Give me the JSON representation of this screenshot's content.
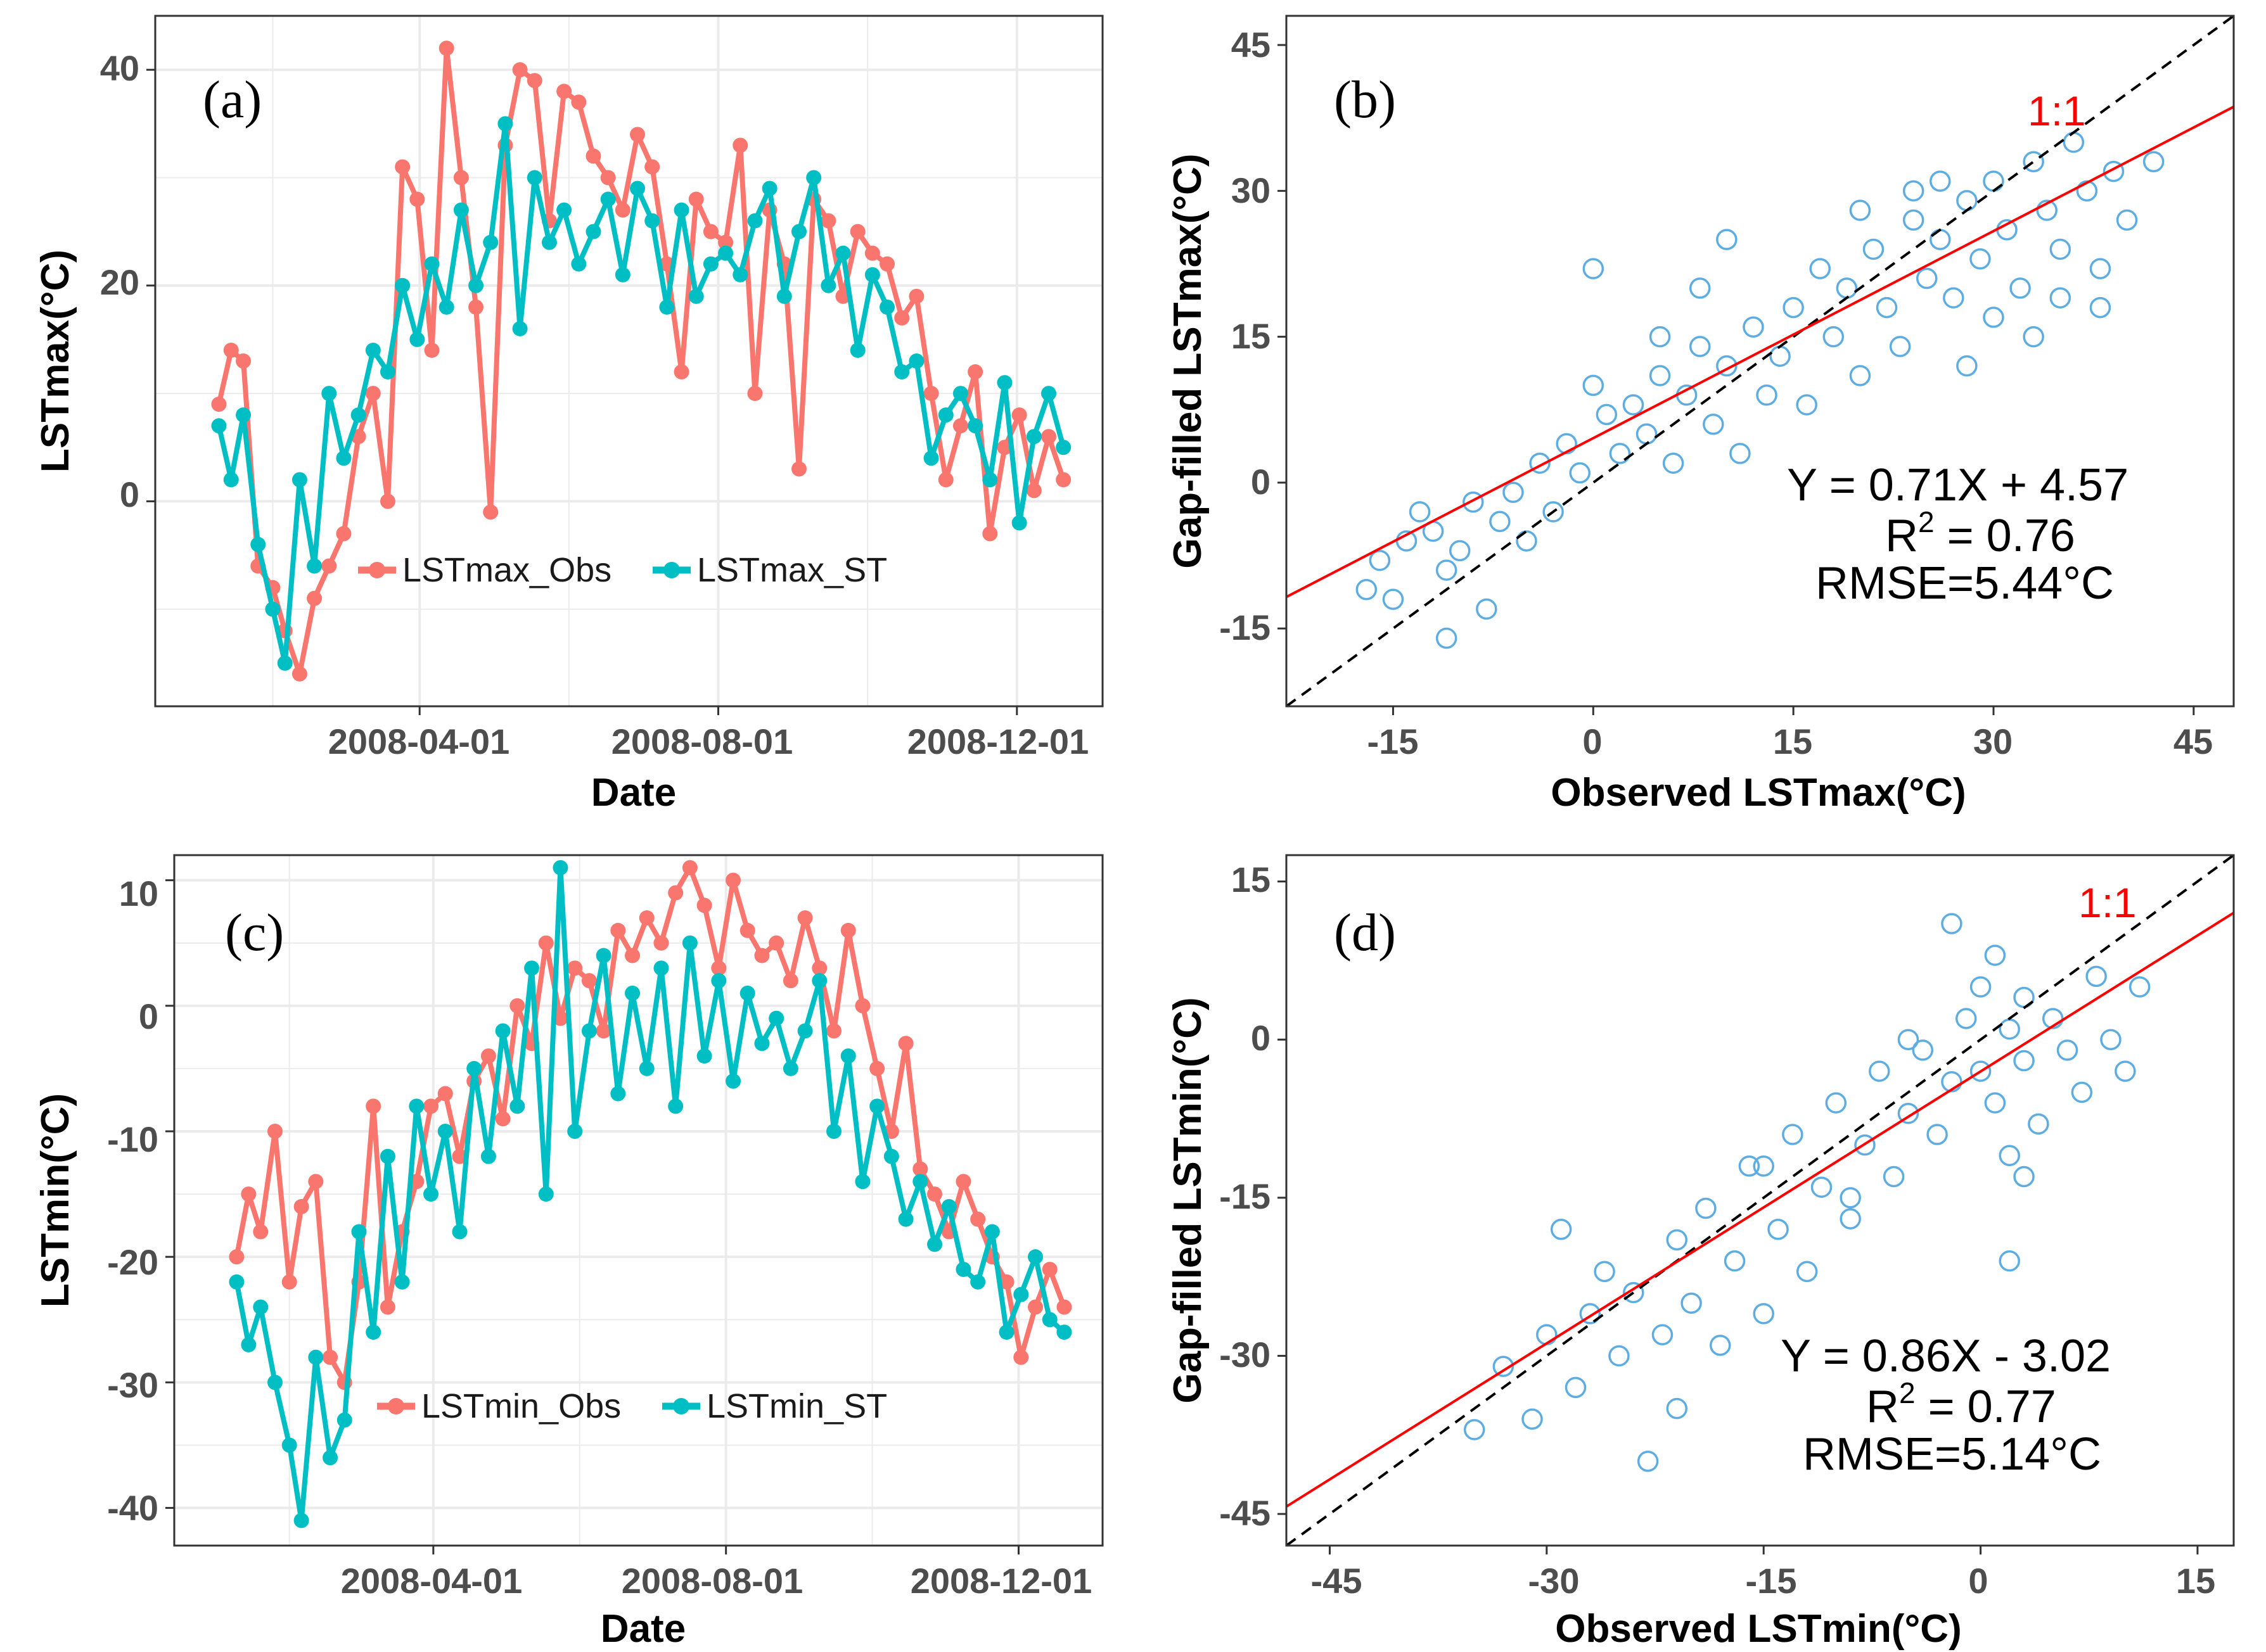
{
  "colors": {
    "obs": "#F8766D",
    "st": "#00BFC4",
    "points": "#5DADE2",
    "fit": "#FF0000",
    "identity": "#000000",
    "grid": "#EBEBEB",
    "tick_text": "#4D4D4D"
  },
  "chart_data": [
    {
      "id": "a",
      "panel_label": "(a)",
      "type": "line",
      "xlabel": "Date",
      "ylabel": "LSTmax(°C)",
      "x_ticks": [
        "2008-04-01",
        "2008-08-01",
        "2008-12-01"
      ],
      "y_ticks": [
        "0",
        "20",
        "40"
      ],
      "ylim": [
        -19,
        45
      ],
      "legend_position": "bottom-left inside",
      "series": [
        {
          "name": "LSTmax_Obs",
          "dates": [
            "2008-01-10",
            "2008-01-15",
            "2008-01-20",
            "2008-01-26",
            "2008-02-01",
            "2008-02-06",
            "2008-02-12",
            "2008-02-18",
            "2008-02-24",
            "2008-03-01",
            "2008-03-07",
            "2008-03-13",
            "2008-03-19",
            "2008-03-25",
            "2008-03-31",
            "2008-04-06",
            "2008-04-12",
            "2008-04-18",
            "2008-04-24",
            "2008-04-30",
            "2008-05-06",
            "2008-05-12",
            "2008-05-18",
            "2008-05-24",
            "2008-05-30",
            "2008-06-05",
            "2008-06-11",
            "2008-06-17",
            "2008-06-23",
            "2008-06-29",
            "2008-07-05",
            "2008-07-11",
            "2008-07-17",
            "2008-07-23",
            "2008-07-29",
            "2008-08-04",
            "2008-08-10",
            "2008-08-16",
            "2008-08-22",
            "2008-08-28",
            "2008-09-03",
            "2008-09-09",
            "2008-09-15",
            "2008-09-21",
            "2008-09-27",
            "2008-10-03",
            "2008-10-09",
            "2008-10-15",
            "2008-10-21",
            "2008-10-27",
            "2008-11-02",
            "2008-11-08",
            "2008-11-14",
            "2008-11-20",
            "2008-11-26",
            "2008-12-02",
            "2008-12-08",
            "2008-12-14",
            "2008-12-20"
          ],
          "values": [
            9,
            14,
            13,
            -6,
            -8,
            -12,
            -16,
            -9,
            -6,
            -3,
            6,
            10,
            0,
            31,
            28,
            14,
            42,
            30,
            18,
            -1,
            33,
            40,
            39,
            26,
            38,
            37,
            32,
            30,
            27,
            34,
            31,
            22,
            12,
            28,
            25,
            24,
            33,
            10,
            27,
            22,
            3,
            28,
            26,
            19,
            25,
            23,
            22,
            17,
            19,
            10,
            2,
            7,
            12,
            -3,
            5,
            8,
            1,
            6,
            2
          ]
        },
        {
          "name": "LSTmax_ST",
          "dates": [
            "2008-01-10",
            "2008-01-15",
            "2008-01-20",
            "2008-01-26",
            "2008-02-01",
            "2008-02-06",
            "2008-02-12",
            "2008-02-18",
            "2008-02-24",
            "2008-03-01",
            "2008-03-07",
            "2008-03-13",
            "2008-03-19",
            "2008-03-25",
            "2008-03-31",
            "2008-04-06",
            "2008-04-12",
            "2008-04-18",
            "2008-04-24",
            "2008-04-30",
            "2008-05-06",
            "2008-05-12",
            "2008-05-18",
            "2008-05-24",
            "2008-05-30",
            "2008-06-05",
            "2008-06-11",
            "2008-06-17",
            "2008-06-23",
            "2008-06-29",
            "2008-07-05",
            "2008-07-11",
            "2008-07-17",
            "2008-07-23",
            "2008-07-29",
            "2008-08-04",
            "2008-08-10",
            "2008-08-16",
            "2008-08-22",
            "2008-08-28",
            "2008-09-03",
            "2008-09-09",
            "2008-09-15",
            "2008-09-21",
            "2008-09-27",
            "2008-10-03",
            "2008-10-09",
            "2008-10-15",
            "2008-10-21",
            "2008-10-27",
            "2008-11-02",
            "2008-11-08",
            "2008-11-14",
            "2008-11-20",
            "2008-11-26",
            "2008-12-02",
            "2008-12-08",
            "2008-12-14",
            "2008-12-20"
          ],
          "values": [
            7,
            2,
            8,
            -4,
            -10,
            -15,
            2,
            -6,
            10,
            4,
            8,
            14,
            12,
            20,
            15,
            22,
            18,
            27,
            20,
            24,
            35,
            16,
            30,
            24,
            27,
            22,
            25,
            28,
            21,
            29,
            26,
            18,
            27,
            19,
            22,
            23,
            21,
            26,
            29,
            19,
            25,
            30,
            20,
            23,
            14,
            21,
            18,
            12,
            13,
            4,
            8,
            10,
            7,
            2,
            11,
            -2,
            6,
            10,
            5
          ]
        }
      ]
    },
    {
      "id": "b",
      "panel_label": "(b)",
      "type": "scatter",
      "xlabel": "Observed LSTmax(°C)",
      "ylabel": "Gap-filled LSTmax(°C)",
      "x_ticks": [
        "-15",
        "0",
        "15",
        "30",
        "45"
      ],
      "y_ticks": [
        "-15",
        "0",
        "15",
        "30",
        "45"
      ],
      "xlim": [
        -23,
        48
      ],
      "ylim": [
        -23,
        48
      ],
      "identity_label": "1:1",
      "equation": "Y = 0.71X + 4.57",
      "r2_prefix": "R",
      "r2_sup": "2",
      "r2_value": " = 0.76",
      "rmse": "RMSE=5.44°C",
      "fit": {
        "slope": 0.71,
        "intercept": 4.57
      },
      "points": [
        [
          -17,
          -11
        ],
        [
          -16,
          -8
        ],
        [
          -15,
          -12
        ],
        [
          -14,
          -6
        ],
        [
          -13,
          -3
        ],
        [
          -12,
          -5
        ],
        [
          -11,
          -16
        ],
        [
          -11,
          -9
        ],
        [
          -10,
          -7
        ],
        [
          -9,
          -2
        ],
        [
          -8,
          -13
        ],
        [
          -7,
          -4
        ],
        [
          -6,
          -1
        ],
        [
          -5,
          -6
        ],
        [
          -4,
          2
        ],
        [
          -3,
          -3
        ],
        [
          -2,
          4
        ],
        [
          -1,
          1
        ],
        [
          0,
          10
        ],
        [
          1,
          7
        ],
        [
          2,
          3
        ],
        [
          3,
          8
        ],
        [
          4,
          5
        ],
        [
          5,
          11
        ],
        [
          6,
          2
        ],
        [
          7,
          9
        ],
        [
          8,
          14
        ],
        [
          8,
          20
        ],
        [
          9,
          6
        ],
        [
          10,
          12
        ],
        [
          11,
          3
        ],
        [
          12,
          16
        ],
        [
          13,
          9
        ],
        [
          14,
          13
        ],
        [
          15,
          18
        ],
        [
          16,
          8
        ],
        [
          17,
          22
        ],
        [
          18,
          15
        ],
        [
          19,
          20
        ],
        [
          20,
          11
        ],
        [
          21,
          24
        ],
        [
          22,
          18
        ],
        [
          23,
          14
        ],
        [
          24,
          27
        ],
        [
          25,
          21
        ],
        [
          26,
          25
        ],
        [
          27,
          19
        ],
        [
          28,
          29
        ],
        [
          29,
          23
        ],
        [
          30,
          31
        ],
        [
          31,
          26
        ],
        [
          32,
          20
        ],
        [
          33,
          33
        ],
        [
          34,
          28
        ],
        [
          35,
          24
        ],
        [
          36,
          35
        ],
        [
          37,
          30
        ],
        [
          38,
          22
        ],
        [
          39,
          32
        ],
        [
          40,
          27
        ],
        [
          42,
          33
        ],
        [
          33,
          15
        ],
        [
          28,
          12
        ],
        [
          20,
          28
        ],
        [
          10,
          25
        ],
        [
          5,
          15
        ],
        [
          0,
          22
        ],
        [
          24,
          30
        ],
        [
          26,
          31
        ],
        [
          30,
          17
        ],
        [
          35,
          19
        ],
        [
          38,
          18
        ]
      ]
    },
    {
      "id": "c",
      "panel_label": "(c)",
      "type": "line",
      "xlabel": "Date",
      "ylabel": "LSTmin(°C)",
      "x_ticks": [
        "2008-04-01",
        "2008-08-01",
        "2008-12-01"
      ],
      "y_ticks": [
        "10",
        "0",
        "-10",
        "-20",
        "-30",
        "-40"
      ],
      "ylim": [
        -43,
        12
      ],
      "legend_position": "bottom-left inside",
      "series": [
        {
          "name": "LSTmin_Obs",
          "dates": [
            "2008-01-10",
            "2008-01-15",
            "2008-01-20",
            "2008-01-26",
            "2008-02-01",
            "2008-02-06",
            "2008-02-12",
            "2008-02-18",
            "2008-02-24",
            "2008-03-01",
            "2008-03-07",
            "2008-03-13",
            "2008-03-19",
            "2008-03-25",
            "2008-03-31",
            "2008-04-06",
            "2008-04-12",
            "2008-04-18",
            "2008-04-24",
            "2008-04-30",
            "2008-05-06",
            "2008-05-12",
            "2008-05-18",
            "2008-05-24",
            "2008-05-30",
            "2008-06-05",
            "2008-06-11",
            "2008-06-17",
            "2008-06-23",
            "2008-06-29",
            "2008-07-05",
            "2008-07-11",
            "2008-07-17",
            "2008-07-23",
            "2008-07-29",
            "2008-08-04",
            "2008-08-10",
            "2008-08-16",
            "2008-08-22",
            "2008-08-28",
            "2008-09-03",
            "2008-09-09",
            "2008-09-15",
            "2008-09-21",
            "2008-09-27",
            "2008-10-03",
            "2008-10-09",
            "2008-10-15",
            "2008-10-21",
            "2008-10-27",
            "2008-11-02",
            "2008-11-08",
            "2008-11-14",
            "2008-11-20",
            "2008-11-26",
            "2008-12-02",
            "2008-12-08",
            "2008-12-14",
            "2008-12-20"
          ],
          "values": [
            -20,
            -15,
            -18,
            -10,
            -22,
            -16,
            -14,
            -28,
            -30,
            -22,
            -8,
            -24,
            -18,
            -14,
            -8,
            -7,
            -12,
            -6,
            -4,
            -9,
            0,
            -3,
            5,
            -1,
            3,
            2,
            -2,
            6,
            4,
            7,
            5,
            9,
            11,
            8,
            3,
            10,
            6,
            4,
            5,
            2,
            7,
            3,
            -2,
            6,
            0,
            -5,
            -10,
            -3,
            -13,
            -15,
            -18,
            -14,
            -17,
            -20,
            -22,
            -28,
            -24,
            -21,
            -24
          ]
        },
        {
          "name": "LSTmin_ST",
          "dates": [
            "2008-01-10",
            "2008-01-15",
            "2008-01-20",
            "2008-01-26",
            "2008-02-01",
            "2008-02-06",
            "2008-02-12",
            "2008-02-18",
            "2008-02-24",
            "2008-03-01",
            "2008-03-07",
            "2008-03-13",
            "2008-03-19",
            "2008-03-25",
            "2008-03-31",
            "2008-04-06",
            "2008-04-12",
            "2008-04-18",
            "2008-04-24",
            "2008-04-30",
            "2008-05-06",
            "2008-05-12",
            "2008-05-18",
            "2008-05-24",
            "2008-05-30",
            "2008-06-05",
            "2008-06-11",
            "2008-06-17",
            "2008-06-23",
            "2008-06-29",
            "2008-07-05",
            "2008-07-11",
            "2008-07-17",
            "2008-07-23",
            "2008-07-29",
            "2008-08-04",
            "2008-08-10",
            "2008-08-16",
            "2008-08-22",
            "2008-08-28",
            "2008-09-03",
            "2008-09-09",
            "2008-09-15",
            "2008-09-21",
            "2008-09-27",
            "2008-10-03",
            "2008-10-09",
            "2008-10-15",
            "2008-10-21",
            "2008-10-27",
            "2008-11-02",
            "2008-11-08",
            "2008-11-14",
            "2008-11-20",
            "2008-11-26",
            "2008-12-02",
            "2008-12-08",
            "2008-12-14",
            "2008-12-20"
          ],
          "values": [
            -22,
            -27,
            -24,
            -30,
            -35,
            -41,
            -28,
            -36,
            -33,
            -18,
            -26,
            -12,
            -22,
            -8,
            -15,
            -10,
            -18,
            -5,
            -12,
            -2,
            -8,
            3,
            -15,
            11,
            -10,
            -2,
            4,
            -7,
            1,
            -5,
            3,
            -8,
            5,
            -4,
            2,
            -6,
            1,
            -3,
            -1,
            -5,
            -2,
            2,
            -10,
            -4,
            -14,
            -8,
            -12,
            -17,
            -14,
            -19,
            -16,
            -21,
            -22,
            -18,
            -26,
            -23,
            -20,
            -25,
            -26
          ]
        }
      ]
    },
    {
      "id": "d",
      "panel_label": "(d)",
      "type": "scatter",
      "xlabel": "Observed LSTmin(°C)",
      "ylabel": "Gap-filled LSTmin(°C)",
      "x_ticks": [
        "-45",
        "-30",
        "-15",
        "0",
        "15"
      ],
      "y_ticks": [
        "-45",
        "-30",
        "-15",
        "0",
        "15"
      ],
      "xlim": [
        -48,
        17.5
      ],
      "ylim": [
        -48,
        17.5
      ],
      "identity_label": "1:1",
      "equation": "Y = 0.86X - 3.02",
      "r2_prefix": "R",
      "r2_sup": "2",
      "r2_value": " = 0.77",
      "rmse": "RMSE=5.14°C",
      "fit": {
        "slope": 0.86,
        "intercept": -3.02
      },
      "points": [
        [
          -35,
          -37
        ],
        [
          -33,
          -31
        ],
        [
          -31,
          -36
        ],
        [
          -30,
          -28
        ],
        [
          -29,
          -18
        ],
        [
          -28,
          -33
        ],
        [
          -27,
          -26
        ],
        [
          -26,
          -22
        ],
        [
          -25,
          -30
        ],
        [
          -24,
          -24
        ],
        [
          -23,
          -40
        ],
        [
          -22,
          -28
        ],
        [
          -21,
          -35
        ],
        [
          -21,
          -19
        ],
        [
          -20,
          -25
        ],
        [
          -19,
          -16
        ],
        [
          -18,
          -29
        ],
        [
          -17,
          -21
        ],
        [
          -16,
          -12
        ],
        [
          -15,
          -26
        ],
        [
          -14,
          -18
        ],
        [
          -13,
          -9
        ],
        [
          -12,
          -22
        ],
        [
          -11,
          -14
        ],
        [
          -10,
          -6
        ],
        [
          -9,
          -17
        ],
        [
          -8,
          -10
        ],
        [
          -7,
          -3
        ],
        [
          -6,
          -13
        ],
        [
          -5,
          -7
        ],
        [
          -4,
          -1
        ],
        [
          -3,
          -9
        ],
        [
          -2,
          -4
        ],
        [
          -1,
          2
        ],
        [
          0,
          -3
        ],
        [
          0,
          5
        ],
        [
          1,
          -6
        ],
        [
          1,
          8
        ],
        [
          2,
          1
        ],
        [
          2,
          -11
        ],
        [
          3,
          4
        ],
        [
          3,
          -2
        ],
        [
          4,
          -8
        ],
        [
          5,
          2
        ],
        [
          6,
          -1
        ],
        [
          7,
          -5
        ],
        [
          8,
          6
        ],
        [
          9,
          0
        ],
        [
          10,
          -3
        ],
        [
          11,
          5
        ],
        [
          -2,
          11
        ],
        [
          2,
          -21
        ],
        [
          -15,
          -12
        ],
        [
          -9,
          -15
        ],
        [
          -5,
          0
        ],
        [
          3,
          -13
        ]
      ]
    }
  ]
}
